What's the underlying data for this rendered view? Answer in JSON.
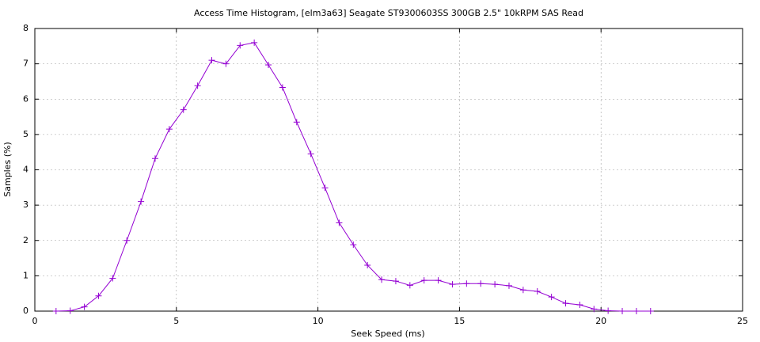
{
  "chart_data": {
    "type": "line",
    "title": "Access Time Histogram, [elm3a63] Seagate ST9300603SS 300GB 2.5\" 10kRPM SAS Read",
    "x_label": "Seek Speed (ms)",
    "y_label": "Samples (%)",
    "x": [
      0.75,
      1.25,
      1.75,
      2.25,
      2.75,
      3.25,
      3.75,
      4.25,
      4.75,
      5.25,
      5.75,
      6.25,
      6.75,
      7.25,
      7.75,
      8.25,
      8.75,
      9.25,
      9.75,
      10.25,
      10.75,
      11.25,
      11.75,
      12.25,
      12.75,
      13.25,
      13.75,
      14.25,
      14.75,
      15.25,
      15.75,
      16.25,
      16.75,
      17.25,
      17.75,
      18.25,
      18.75,
      19.25,
      19.75,
      20.25,
      20.75,
      21.25,
      21.75
    ],
    "series": [
      {
        "color": "#9400d3",
        "values": [
          0,
          0.01,
          0.12,
          0.43,
          0.93,
          2.0,
          3.1,
          4.32,
          5.15,
          5.7,
          6.38,
          7.1,
          7.0,
          7.52,
          7.6,
          6.97,
          6.33,
          5.35,
          4.45,
          3.49,
          2.5,
          1.88,
          1.3,
          0.89,
          0.85,
          0.73,
          0.87,
          0.87,
          0.76,
          0.78,
          0.78,
          0.76,
          0.72,
          0.6,
          0.56,
          0.4,
          0.22,
          0.18,
          0.06,
          0.01,
          0,
          0,
          0
        ]
      }
    ],
    "xlim": [
      0,
      25
    ],
    "xticks": [
      0,
      5,
      10,
      15,
      20,
      25
    ],
    "ylim": [
      0,
      8
    ],
    "yticks": [
      0,
      1,
      2,
      3,
      4,
      5,
      6,
      7,
      8
    ],
    "grid": true
  }
}
